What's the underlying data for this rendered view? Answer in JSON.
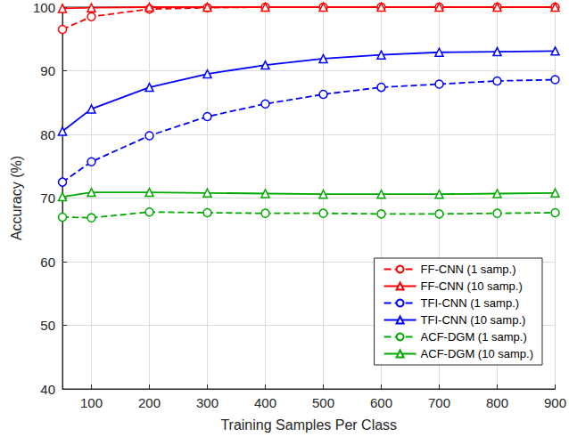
{
  "chart_data": {
    "type": "line",
    "x_label": "Training Samples Per Class",
    "y_label": "Accuracy (%)",
    "x": [
      50,
      100,
      200,
      300,
      400,
      500,
      600,
      700,
      800,
      900
    ],
    "xlim": [
      50,
      900
    ],
    "xticks": [
      100,
      200,
      300,
      400,
      500,
      600,
      700,
      800,
      900
    ],
    "ylim": [
      40,
      100
    ],
    "yticks": [
      40,
      50,
      60,
      70,
      80,
      90,
      100
    ],
    "grid": true,
    "legend": "bottom-right",
    "series": [
      {
        "name": "FF-CNN (1 samp.)",
        "color": "#ff0000",
        "marker": "circle",
        "line_style": "dashed",
        "values": [
          96.5,
          98.5,
          99.7,
          99.9,
          100,
          100,
          100,
          100,
          100,
          100
        ]
      },
      {
        "name": "FF-CNN (10 samp.)",
        "color": "#ff0000",
        "marker": "triangle",
        "line_style": "solid",
        "values": [
          99.8,
          99.9,
          100,
          100,
          100,
          100,
          100,
          100,
          100,
          100
        ]
      },
      {
        "name": "TFI-CNN (1 samp.)",
        "color": "#0000ff",
        "marker": "circle",
        "line_style": "dashed",
        "values": [
          72.5,
          75.7,
          79.8,
          82.8,
          84.8,
          86.3,
          87.4,
          87.9,
          88.4,
          88.6
        ]
      },
      {
        "name": "TFI-CNN (10 samp.)",
        "color": "#0000ff",
        "marker": "triangle",
        "line_style": "solid",
        "values": [
          80.5,
          84.0,
          87.4,
          89.5,
          90.9,
          91.9,
          92.5,
          92.9,
          93.0,
          93.1
        ]
      },
      {
        "name": "ACF-DGM (1 samp.)",
        "color": "#00aa00",
        "marker": "circle",
        "line_style": "dashed",
        "values": [
          67.0,
          66.9,
          67.8,
          67.7,
          67.6,
          67.6,
          67.5,
          67.5,
          67.6,
          67.7
        ]
      },
      {
        "name": "ACF-DGM (10 samp.)",
        "color": "#00aa00",
        "marker": "triangle",
        "line_style": "solid",
        "values": [
          70.2,
          70.9,
          70.9,
          70.8,
          70.7,
          70.6,
          70.6,
          70.6,
          70.7,
          70.8
        ]
      }
    ]
  }
}
